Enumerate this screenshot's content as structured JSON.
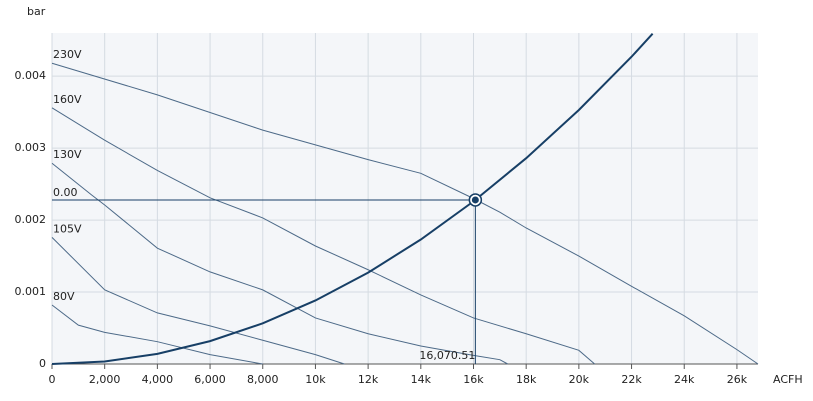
{
  "chart_data": {
    "type": "line",
    "x_label": "ACFH",
    "y_label": "bar",
    "xlim": [
      0,
      26800
    ],
    "ylim": [
      0,
      0.0046
    ],
    "xticks": [
      0,
      {
        "value": 2000,
        "label": "2,000"
      },
      {
        "value": 4000,
        "label": "4,000"
      },
      {
        "value": 6000,
        "label": "6,000"
      },
      {
        "value": 8000,
        "label": "8,000"
      },
      {
        "value": 10000,
        "label": "10k"
      },
      {
        "value": 12000,
        "label": "12k"
      },
      {
        "value": 14000,
        "label": "14k"
      },
      {
        "value": 16000,
        "label": "16k"
      },
      {
        "value": 18000,
        "label": "18k"
      },
      {
        "value": 20000,
        "label": "20k"
      },
      {
        "value": 22000,
        "label": "22k"
      },
      {
        "value": 24000,
        "label": "24k"
      },
      {
        "value": 26000,
        "label": "26k"
      }
    ],
    "yticks": [
      0,
      0.001,
      0.002,
      0.003,
      0.004
    ],
    "grid": true,
    "series": [
      {
        "name": "230V",
        "color": "#4d6a88",
        "x": [
          0,
          4000,
          8000,
          12000,
          14000,
          16000,
          17000,
          18000,
          20000,
          22000,
          24000,
          26000,
          26800
        ],
        "values": [
          0.00418,
          0.00374,
          0.00325,
          0.00284,
          0.00265,
          0.0023,
          0.00211,
          0.00189,
          0.0015,
          0.00108,
          0.00067,
          0.0002,
          0
        ]
      },
      {
        "name": "160V",
        "color": "#4d6a88",
        "x": [
          0,
          2000,
          4000,
          6000,
          8000,
          10000,
          12000,
          14000,
          16000,
          18000,
          20000,
          20600
        ],
        "values": [
          0.00356,
          0.00311,
          0.00269,
          0.00231,
          0.00203,
          0.00164,
          0.00131,
          0.00096,
          0.00064,
          0.00042,
          0.00019,
          0
        ]
      },
      {
        "name": "130V",
        "color": "#4d6a88",
        "x": [
          0,
          1500,
          2000,
          4000,
          6000,
          8000,
          10000,
          12000,
          14000,
          16000,
          17000,
          17300
        ],
        "values": [
          0.00279,
          0.00235,
          0.00221,
          0.00161,
          0.00128,
          0.00103,
          0.00064,
          0.00042,
          0.00025,
          0.00012,
          6e-05,
          0
        ]
      },
      {
        "name": "105V",
        "color": "#4d6a88",
        "x": [
          0,
          2000,
          4000,
          6000,
          8000,
          10000,
          11100
        ],
        "values": [
          0.00176,
          0.00103,
          0.00071,
          0.00053,
          0.00033,
          0.00013,
          0
        ]
      },
      {
        "name": "80V",
        "color": "#4d6a88",
        "x": [
          0,
          1000,
          2000,
          4000,
          6000,
          8000
        ],
        "values": [
          0.00082,
          0.00054,
          0.00044,
          0.00031,
          0.00013,
          0
        ]
      }
    ],
    "system_curve": {
      "color": "#173f66",
      "x": [
        0,
        2000,
        4000,
        6000,
        8000,
        10000,
        12000,
        14000,
        16000,
        18000,
        20000,
        22000,
        22800
      ],
      "values": [
        0,
        3.5e-05,
        0.000141,
        0.000318,
        0.000565,
        0.000883,
        0.00127,
        0.00173,
        0.00226,
        0.00286,
        0.00353,
        0.00427,
        0.00459
      ]
    },
    "operating_point": {
      "x": 16070.51,
      "y": 0.00228,
      "x_label": "16,070.51",
      "y_label": "0.00",
      "color": "#173f66"
    }
  }
}
